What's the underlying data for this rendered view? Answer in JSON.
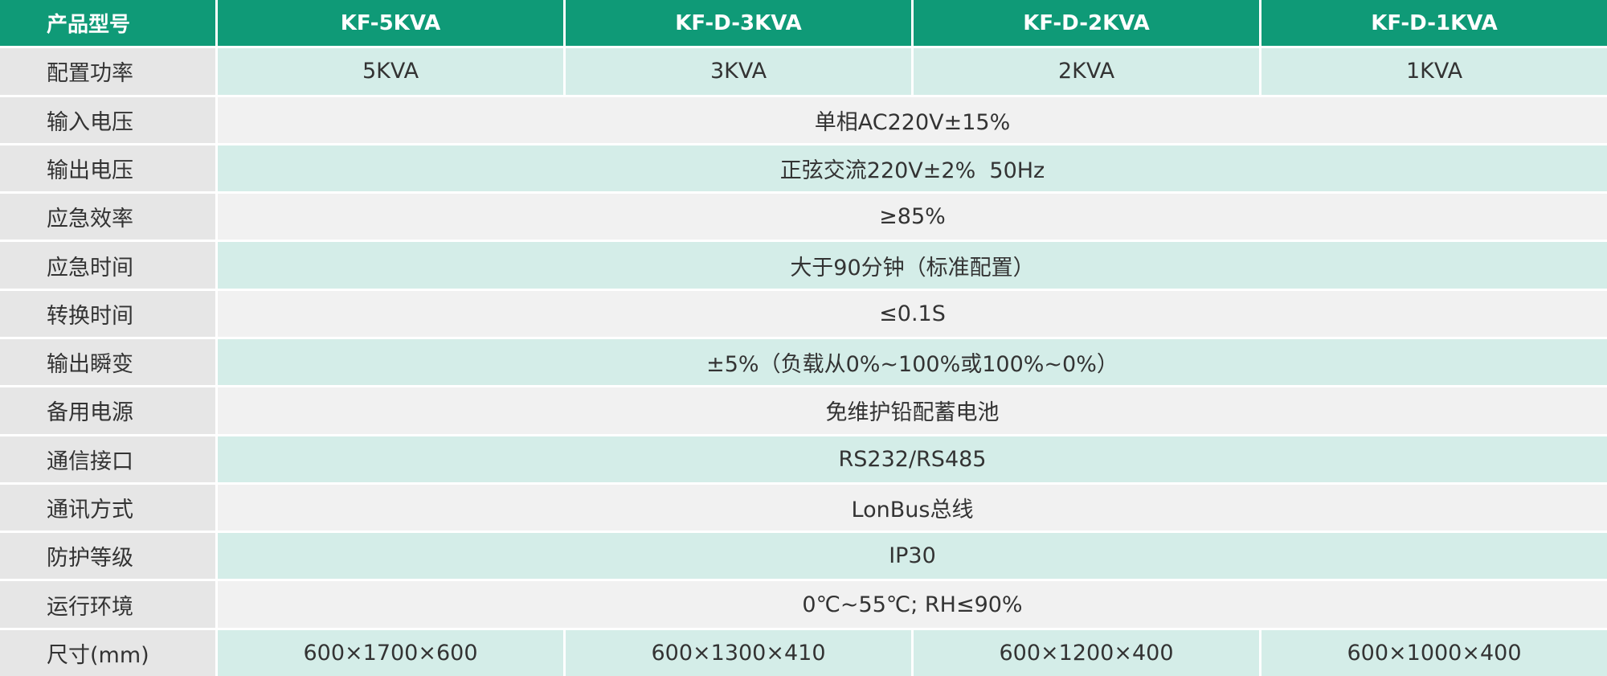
{
  "table": {
    "header": [
      "产品型号",
      "KF-5KVA",
      "KF-D-3KVA",
      "KF-D-2KVA",
      "KF-D-1KVA"
    ],
    "rows": [
      {
        "label": "配置功率",
        "cells": [
          "5KVA",
          "3KVA",
          "2KVA",
          "1KVA"
        ]
      },
      {
        "label": "输入电压",
        "cells": [
          "单相AC220V±15%"
        ]
      },
      {
        "label": "输出电压",
        "cells": [
          "正弦交流220V±2%  50Hz"
        ]
      },
      {
        "label": "应急效率",
        "cells": [
          "≥85%"
        ]
      },
      {
        "label": "应急时间",
        "cells": [
          "大于90分钟（标准配置）"
        ]
      },
      {
        "label": "转换时间",
        "cells": [
          "≤0.1S"
        ]
      },
      {
        "label": "输出瞬变",
        "cells": [
          "±5%（负载从0%~100%或100%~0%）"
        ]
      },
      {
        "label": "备用电源",
        "cells": [
          "免维护铅配蓄电池"
        ]
      },
      {
        "label": "通信接口",
        "cells": [
          "RS232/RS485"
        ]
      },
      {
        "label": "通讯方式",
        "cells": [
          "LonBus总线"
        ]
      },
      {
        "label": "防护等级",
        "cells": [
          "IP30"
        ]
      },
      {
        "label": "运行环境",
        "cells": [
          "0℃~55℃; RH≤90%"
        ]
      },
      {
        "label": "尺寸(mm)",
        "cells": [
          "600×1700×600",
          "600×1300×410",
          "600×1200×400",
          "600×1000×400"
        ]
      }
    ]
  }
}
